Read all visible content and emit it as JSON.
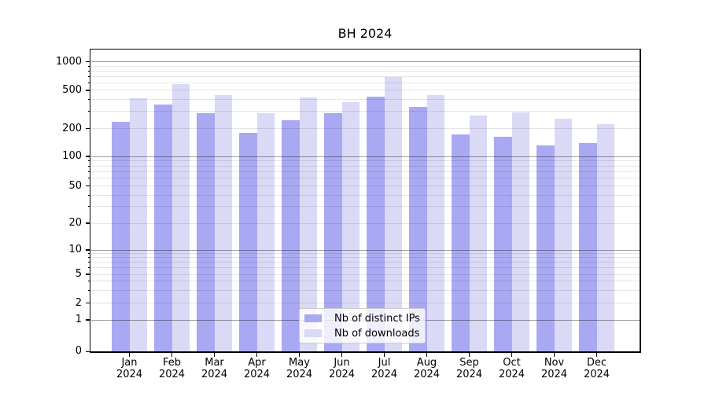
{
  "title": "BH 2024",
  "legend": {
    "entries": [
      {
        "label": "Nb of distinct IPs",
        "color": "#a9a9f3"
      },
      {
        "label": "Nb of downloads",
        "color": "#dadaf6"
      }
    ]
  },
  "chart_data": {
    "type": "bar",
    "title": "BH 2024",
    "categories": [
      "Jan 2024",
      "Feb 2024",
      "Mar 2024",
      "Apr 2024",
      "May 2024",
      "Jun 2024",
      "Jul 2024",
      "Aug 2024",
      "Sep 2024",
      "Oct 2024",
      "Nov 2024",
      "Dec 2024"
    ],
    "series": [
      {
        "name": "Nb of distinct IPs",
        "color": "#a9a9f3",
        "values": [
          233,
          353,
          286,
          180,
          244,
          288,
          430,
          333,
          174,
          162,
          132,
          140
        ]
      },
      {
        "name": "Nb of downloads",
        "color": "#dadaf6",
        "values": [
          411,
          577,
          444,
          288,
          424,
          378,
          690,
          444,
          272,
          296,
          255,
          222
        ]
      }
    ],
    "yscale": "log-with-zero",
    "yticks": [
      0,
      1,
      2,
      5,
      10,
      20,
      50,
      100,
      200,
      500,
      1000
    ],
    "ytick_labels": [
      "0",
      "1",
      "2",
      "5",
      "10",
      "20",
      "50",
      "100",
      "200",
      "500",
      "1000"
    ],
    "ylim": [
      0,
      1370
    ],
    "xlabel": "",
    "ylabel": "",
    "grid": true,
    "grid_minor": true,
    "legend_position": "lower center inside"
  }
}
